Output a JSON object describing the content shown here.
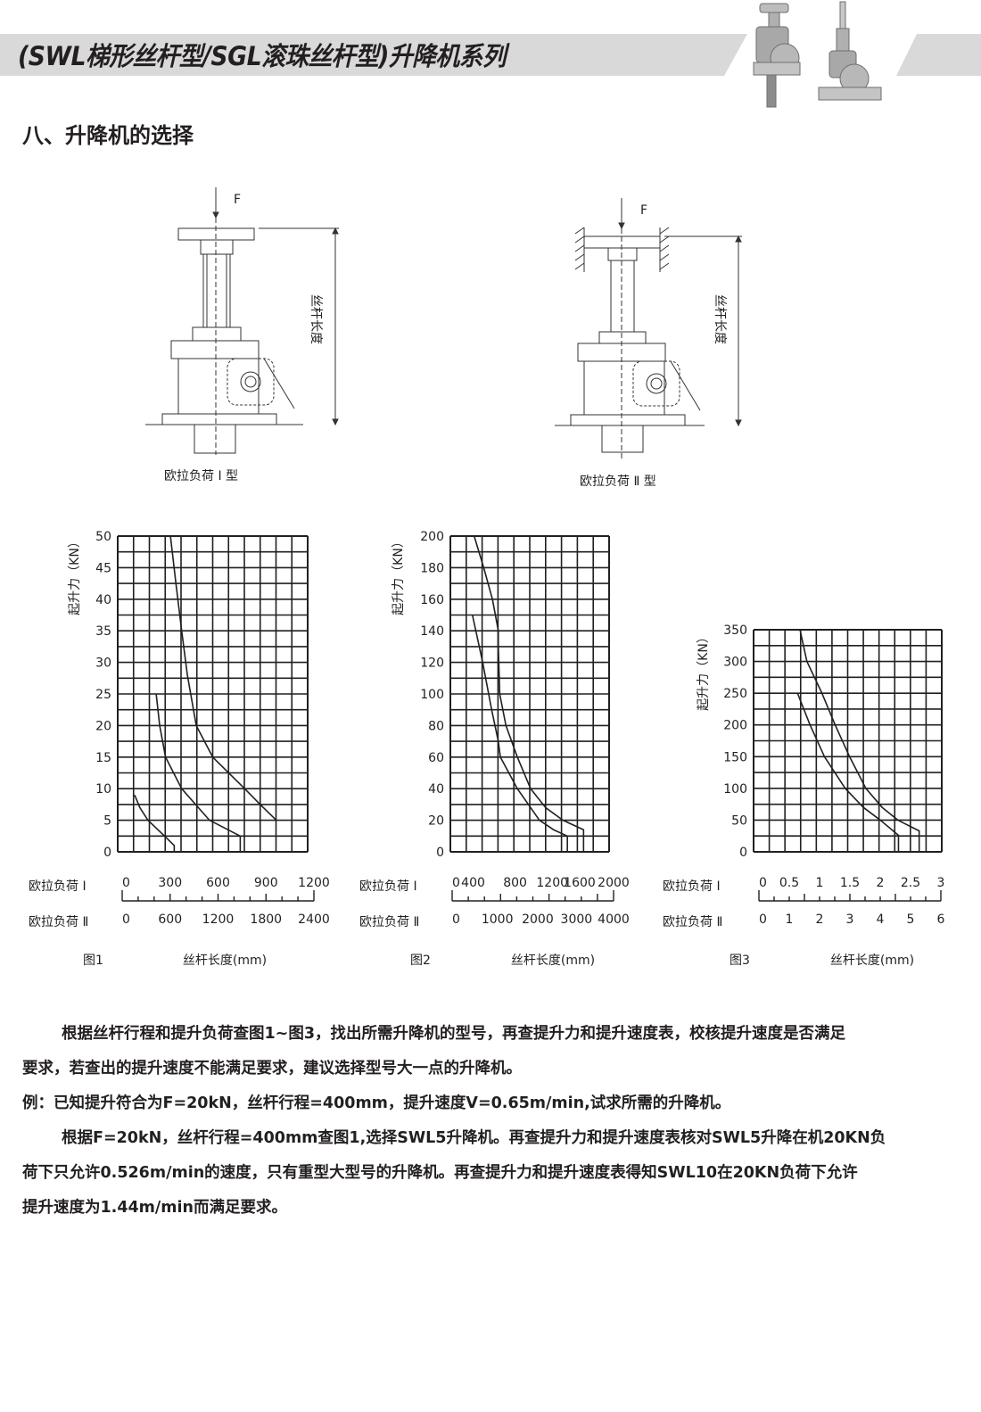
{
  "header": {
    "title": "(SWL梯形丝杆型/SGL滚珠丝杆型)升降机系列",
    "band_color": "#d9d9d9",
    "product_image": "screw-jack-products-photo"
  },
  "section_heading": "八、升降机的选择",
  "diagrams": [
    {
      "force_label": "F",
      "length_label": "丝杆长度",
      "caption": "欧拉负荷 Ⅰ 型"
    },
    {
      "force_label": "F",
      "length_label": "丝杆长度",
      "caption": "欧拉负荷 Ⅱ 型"
    }
  ],
  "chart_data": [
    {
      "type": "line",
      "figure_label": "图1",
      "xlabel": "丝杆长度(mm)",
      "ylabel": "起升力（KN）",
      "ylim": [
        0,
        50
      ],
      "xlim": [
        0,
        1200
      ],
      "yticks": [
        "0",
        "5",
        "10",
        "15",
        "20",
        "25",
        "30",
        "35",
        "40",
        "45",
        "50"
      ],
      "x_axis_rows": [
        {
          "label": "欧拉负荷 Ⅰ",
          "ticks": [
            "0",
            "300",
            "600",
            "900",
            "1200"
          ]
        },
        {
          "label": "欧拉负荷 Ⅱ",
          "ticks": [
            "0",
            "600",
            "1200",
            "1800",
            "2400"
          ]
        }
      ],
      "grid": true,
      "series": [
        {
          "points": [
            [
              333,
              50
            ],
            [
              370,
              42
            ],
            [
              404,
              35
            ],
            [
              440,
              28
            ],
            [
              496,
              20
            ],
            [
              600,
              15
            ],
            [
              802,
              10
            ],
            [
              900,
              7.5
            ],
            [
              1002,
              5
            ]
          ]
        },
        {
          "points": [
            [
              243,
              25
            ],
            [
              265,
              20
            ],
            [
              302,
              15
            ],
            [
              404,
              10
            ],
            [
              580,
              5
            ],
            [
              774,
              2.5
            ],
            [
              774,
              0
            ]
          ]
        },
        {
          "points": [
            [
              107,
              9
            ],
            [
              140,
              7
            ],
            [
              191,
              5
            ],
            [
              296,
              2.5
            ],
            [
              357,
              1
            ],
            [
              357,
              0
            ]
          ]
        }
      ]
    },
    {
      "type": "line",
      "figure_label": "图2",
      "xlabel": "丝杆长度(mm)",
      "ylabel": "起升力（KN）",
      "ylim": [
        0,
        200
      ],
      "xlim": [
        0,
        2000
      ],
      "yticks": [
        "0",
        "20",
        "40",
        "60",
        "80",
        "100",
        "120",
        "140",
        "160",
        "180",
        "200"
      ],
      "x_axis_rows": [
        {
          "label": "欧拉负荷 Ⅰ",
          "ticks": [
            "0",
            "400",
            "800",
            "1200",
            "1600",
            "2000"
          ]
        },
        {
          "label": "欧拉负荷 Ⅱ",
          "ticks": [
            "0",
            "1000",
            "2000",
            "3000",
            "4000"
          ]
        }
      ],
      "grid": true,
      "series": [
        {
          "points": [
            [
              300,
              200
            ],
            [
              420,
              180
            ],
            [
              530,
              160
            ],
            [
              604,
              140
            ],
            [
              604,
              130
            ],
            [
              622,
              100
            ],
            [
              700,
              80
            ],
            [
              844,
              60
            ],
            [
              1011,
              40
            ],
            [
              1200,
              28
            ],
            [
              1419,
              20
            ],
            [
              1678,
              14
            ],
            [
              1678,
              0
            ]
          ]
        },
        {
          "points": [
            [
              278,
              150
            ],
            [
              407,
              120
            ],
            [
              520,
              90
            ],
            [
              604,
              70
            ],
            [
              630,
              60
            ],
            [
              844,
              40
            ],
            [
              1122,
              20
            ],
            [
              1300,
              14
            ],
            [
              1474,
              10
            ],
            [
              1474,
              0
            ]
          ]
        }
      ]
    },
    {
      "type": "line",
      "figure_label": "图3",
      "xlabel": "丝杆长度(mm)",
      "ylabel": "起升力（KN）",
      "ylim": [
        0,
        350
      ],
      "xlim": [
        0,
        3
      ],
      "yticks": [
        "0",
        "50",
        "100",
        "150",
        "200",
        "250",
        "300",
        "350"
      ],
      "x_axis_rows": [
        {
          "label": "欧拉负荷 Ⅰ",
          "ticks": [
            "0",
            "0.5",
            "1",
            "1.5",
            "2",
            "2.5",
            "3"
          ]
        },
        {
          "label": "欧拉负荷 Ⅱ",
          "ticks": [
            "0",
            "1",
            "2",
            "3",
            "4",
            "5",
            "6"
          ]
        }
      ],
      "grid": true,
      "series": [
        {
          "points": [
            [
              0.74,
              350
            ],
            [
              0.85,
              300
            ],
            [
              1.09,
              250
            ],
            [
              1.3,
              200
            ],
            [
              1.53,
              150
            ],
            [
              1.79,
              100
            ],
            [
              2.05,
              70
            ],
            [
              2.3,
              50
            ],
            [
              2.64,
              33
            ],
            [
              2.64,
              0
            ]
          ]
        },
        {
          "points": [
            [
              0.7,
              250
            ],
            [
              0.9,
              200
            ],
            [
              1.13,
              150
            ],
            [
              1.46,
              100
            ],
            [
              1.75,
              70
            ],
            [
              2.02,
              50
            ],
            [
              2.31,
              26
            ],
            [
              2.31,
              0
            ]
          ]
        }
      ]
    }
  ],
  "body_text": [
    "根据丝杆行程和提升负荷查图1~图3，找出所需升降机的型号，再查提升力和提升速度表，校核提升速度是否满足",
    "要求，若查出的提升速度不能满足要求，建议选择型号大一点的升降机。",
    "例：已知提升符合为F=20kN，丝杆行程=400mm，提升速度V=0.65m/min,试求所需的升降机。",
    "根据F=20kN，丝杆行程=400mm查图1,选择SWL5升降机。再查提升力和提升速度表核对SWL5升降在机20KN负",
    "荷下只允许0.526m/min的速度，只有重型大型号的升降机。再查提升力和提升速度表得知SWL10在20KN负荷下允许",
    "提升速度为1.44m/min而满足要求。"
  ]
}
